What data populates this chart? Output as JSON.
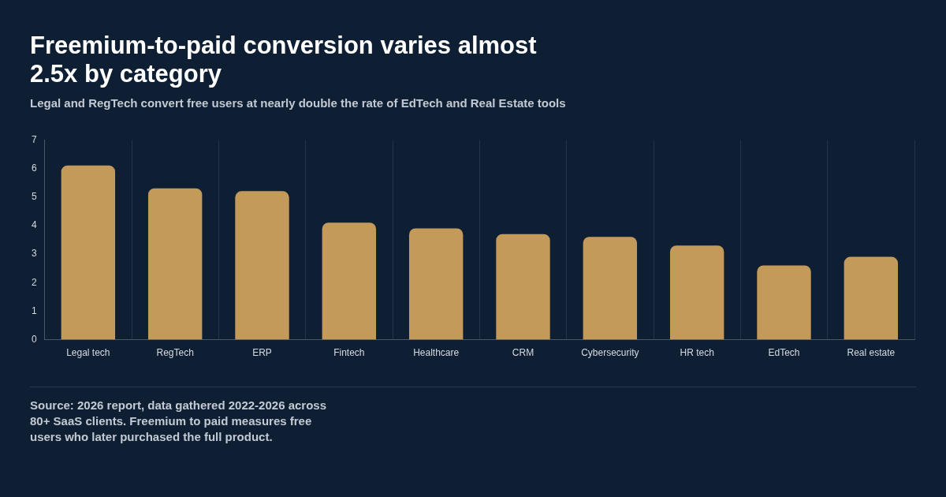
{
  "chart_data": {
    "type": "bar",
    "title": "Freemium-to-paid conversion varies almost 2.5x by category",
    "subtitle": "Legal and RegTech convert free users at nearly double the rate of EdTech and Real Estate tools",
    "categories": [
      "Legal tech",
      "RegTech",
      "ERP",
      "Fintech",
      "Healthcare",
      "CRM",
      "Cybersecurity",
      "HR tech",
      "EdTech",
      "Real estate"
    ],
    "values": [
      6.1,
      5.3,
      5.2,
      4.1,
      3.9,
      3.7,
      3.6,
      3.3,
      2.6,
      2.9
    ],
    "color": "#c49a5a",
    "ylim": [
      0,
      7
    ],
    "yticks": [
      0,
      1,
      2,
      3,
      4,
      5,
      6,
      7
    ],
    "grid": "x",
    "legend": false,
    "annotations": [
      "Source: 2026 report, data gathered 2022-2026 across 80+ SaaS clients. Freemium to paid measures free users who later purchased the full product."
    ]
  }
}
